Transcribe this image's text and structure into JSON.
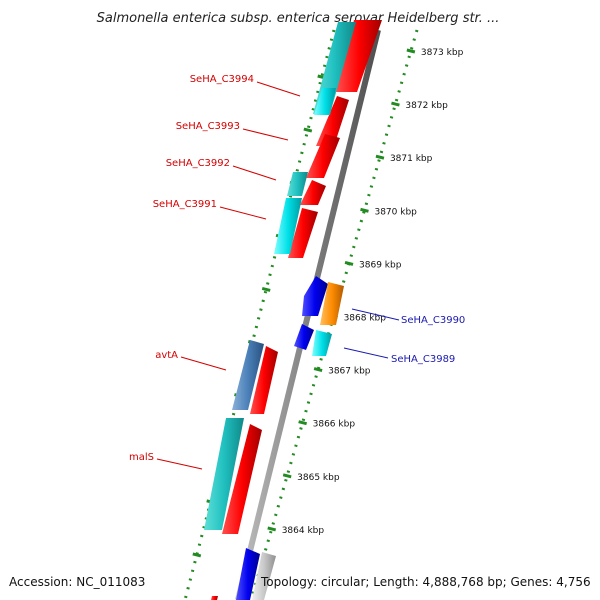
{
  "title": "Salmonella enterica subsp. enterica serovar Heidelberg str. ...",
  "footer": {
    "accession": "Accession: NC_011083",
    "summary": "Topology: circular; Length: 4,888,768 bp; Genes: 4,756"
  },
  "ticks": [
    "3873 kbp",
    "3872 kbp",
    "3871 kbp",
    "3870 kbp",
    "3869 kbp",
    "3868 kbp",
    "3867 kbp",
    "3866 kbp",
    "3865 kbp",
    "3864 kbp"
  ],
  "gene_labels": [
    {
      "text": "SeHA_C3994",
      "color": "#d40000"
    },
    {
      "text": "SeHA_C3993",
      "color": "#d40000"
    },
    {
      "text": "SeHA_C3992",
      "color": "#d40000"
    },
    {
      "text": "SeHA_C3991",
      "color": "#d40000"
    },
    {
      "text": "avtA",
      "color": "#d40000"
    },
    {
      "text": "malS",
      "color": "#d40000"
    },
    {
      "text": "SeHA_C3990",
      "color": "#1a1ab0"
    },
    {
      "text": "SeHA_C3989",
      "color": "#1a1ab0"
    }
  ],
  "colors": {
    "cds_forward": "#ff0000",
    "cds_reverse": "#0000ee",
    "feature_cyan": "#00e0e8",
    "feature_orange": "#ff8c00",
    "feature_steelblue": "#4a80b8",
    "backbone": "#888888",
    "tick": "#228b22"
  }
}
